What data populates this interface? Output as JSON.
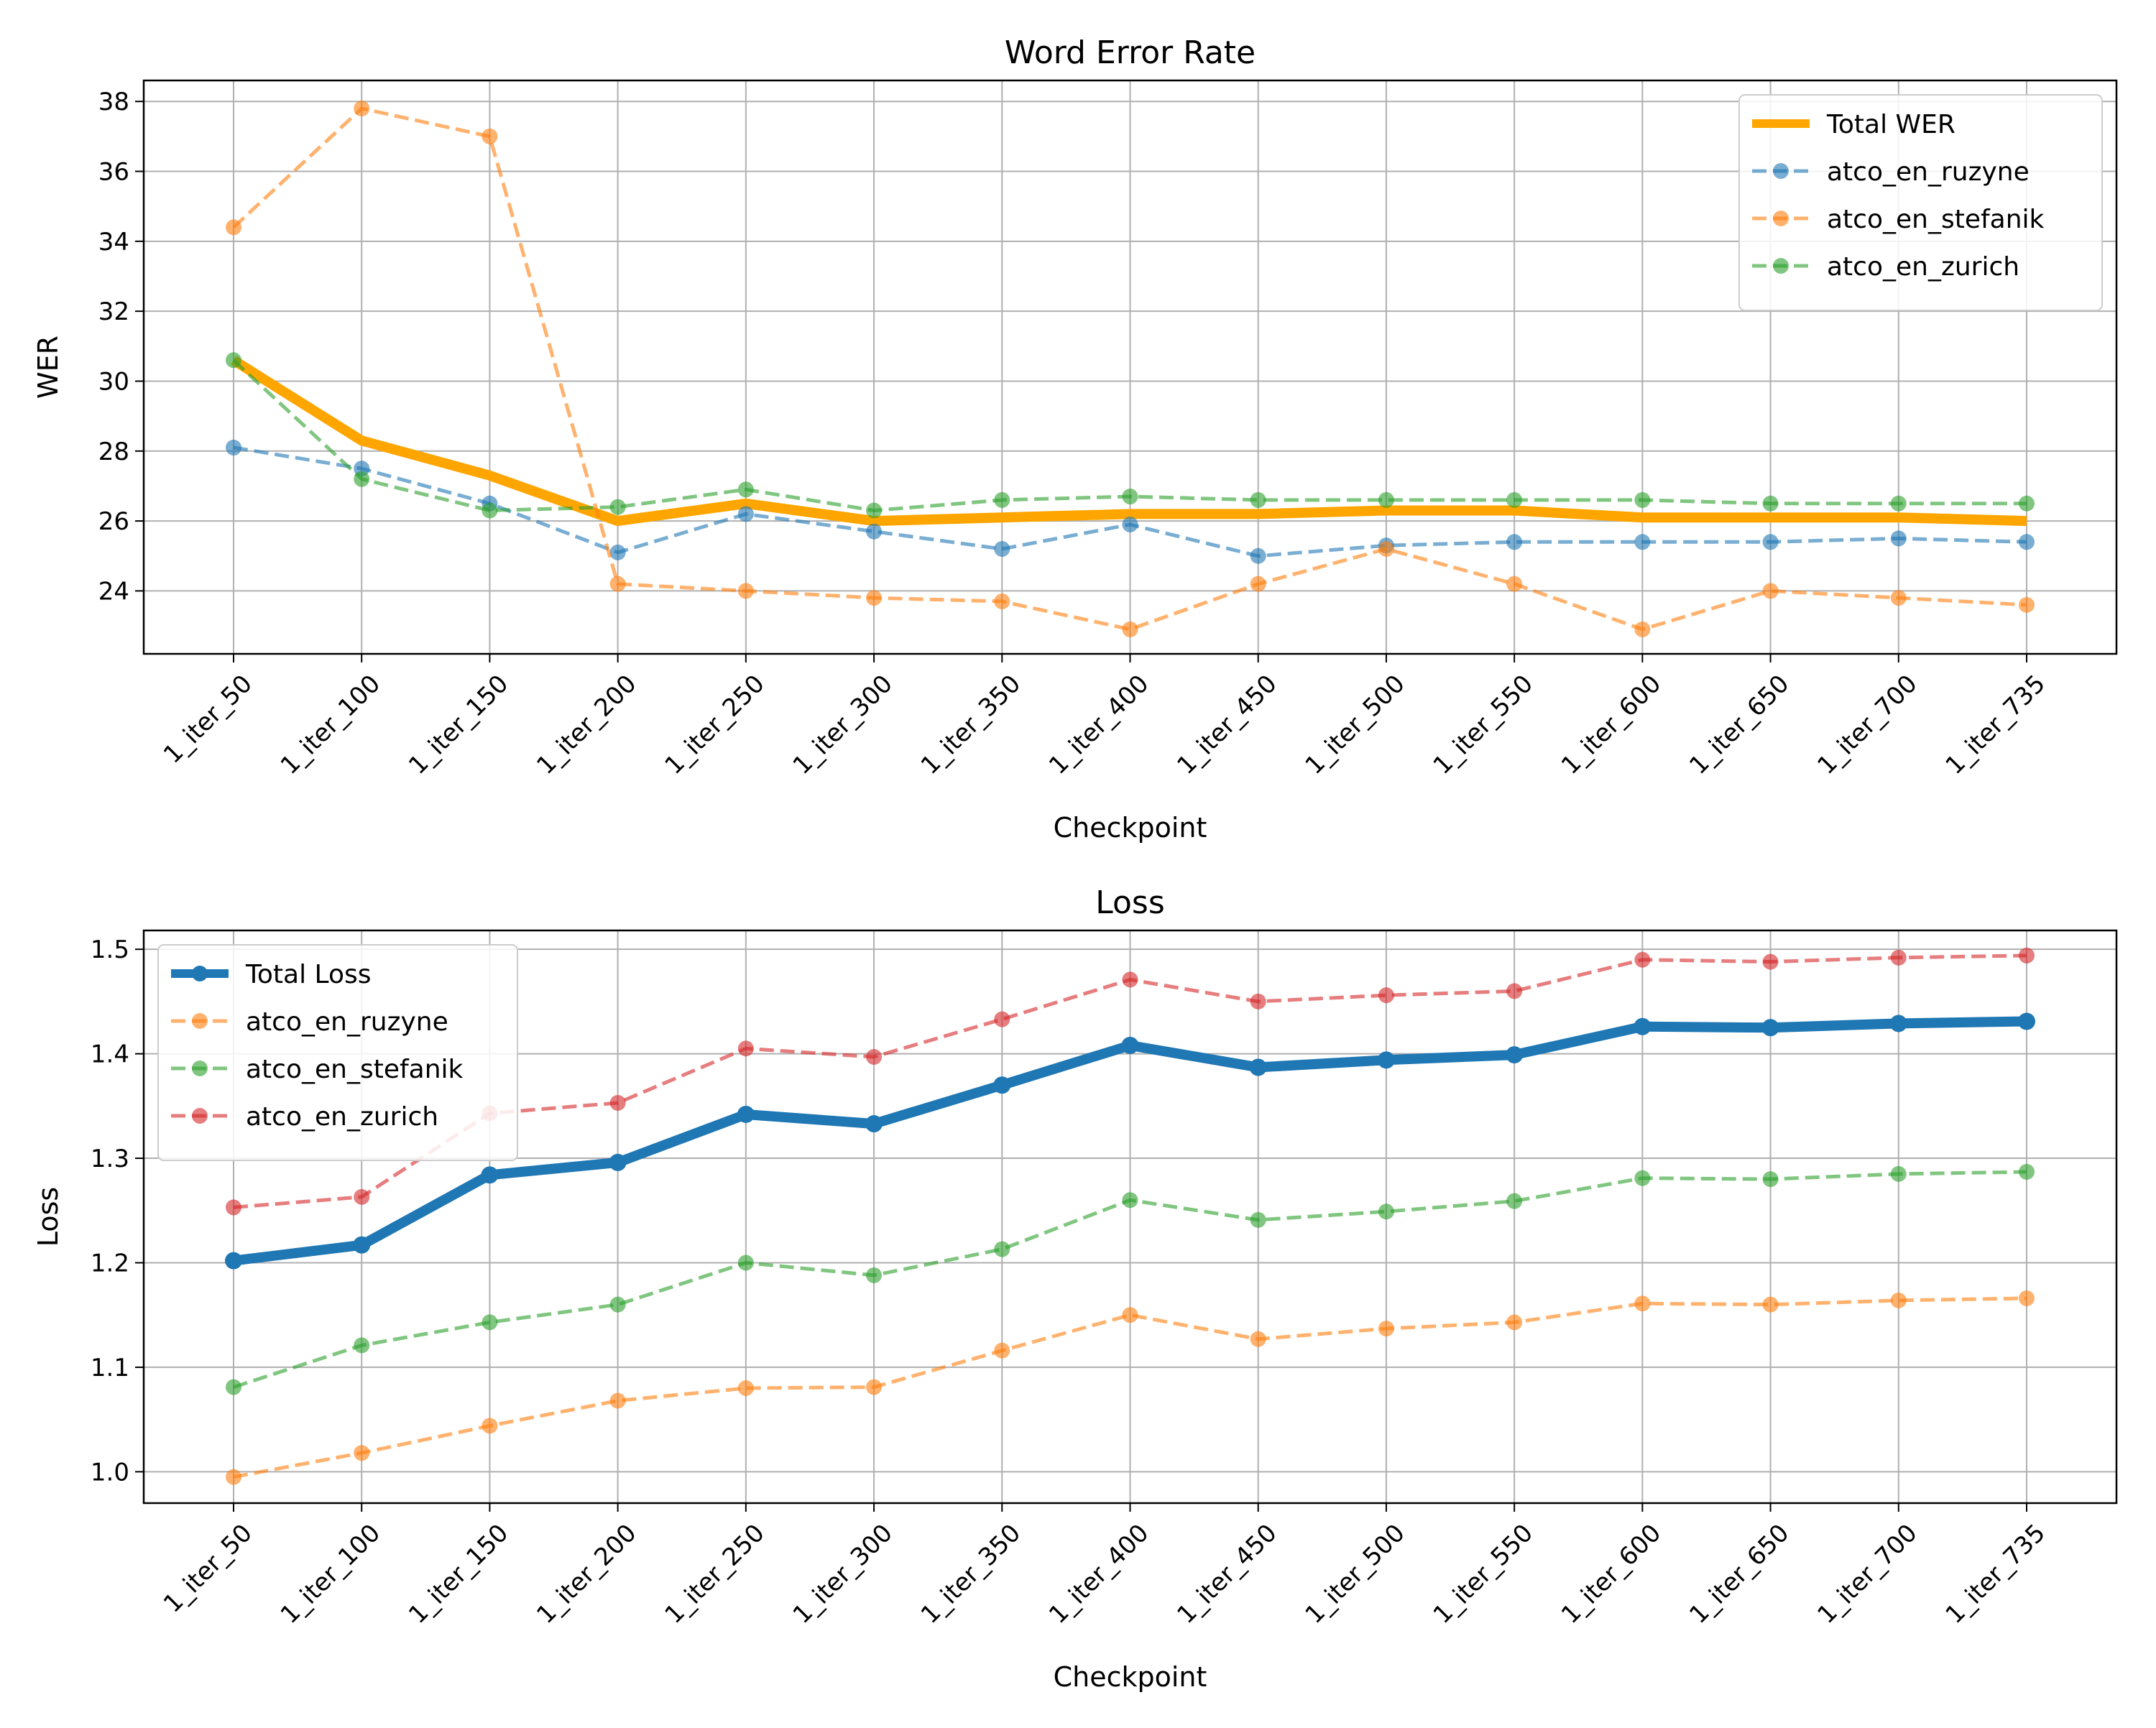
{
  "chart_data": [
    {
      "type": "line",
      "title": "Word Error Rate",
      "xlabel": "Checkpoint",
      "ylabel": "WER",
      "categories": [
        "1_iter_50",
        "1_iter_100",
        "1_iter_150",
        "1_iter_200",
        "1_iter_250",
        "1_iter_300",
        "1_iter_350",
        "1_iter_400",
        "1_iter_450",
        "1_iter_500",
        "1_iter_550",
        "1_iter_600",
        "1_iter_650",
        "1_iter_700",
        "1_iter_735"
      ],
      "ylim": [
        22.2,
        38.6
      ],
      "yticks": [
        "24",
        "26",
        "28",
        "30",
        "32",
        "34",
        "36",
        "38"
      ],
      "grid": true,
      "legend_position": "top-right",
      "series": [
        {
          "name": "Total WER",
          "color": "#ffa500",
          "style": "solid",
          "markers": false,
          "values": [
            30.6,
            28.3,
            27.3,
            26.0,
            26.5,
            26.0,
            26.1,
            26.2,
            26.2,
            26.3,
            26.3,
            26.1,
            26.1,
            26.1,
            26.0
          ]
        },
        {
          "name": "atco_en_ruzyne",
          "color": "#1f77b4",
          "style": "dashed",
          "markers": true,
          "values": [
            28.1,
            27.5,
            26.5,
            25.1,
            26.2,
            25.7,
            25.2,
            25.9,
            25.0,
            25.3,
            25.4,
            25.4,
            25.4,
            25.5,
            25.4
          ]
        },
        {
          "name": "atco_en_stefanik",
          "color": "#ff7f0e",
          "style": "dashed",
          "markers": true,
          "values": [
            34.4,
            37.8,
            37.0,
            24.2,
            24.0,
            23.8,
            23.7,
            22.9,
            24.2,
            25.2,
            24.2,
            22.9,
            24.0,
            23.8,
            23.6
          ]
        },
        {
          "name": "atco_en_zurich",
          "color": "#2ca02c",
          "style": "dashed",
          "markers": true,
          "values": [
            30.6,
            27.2,
            26.3,
            26.4,
            26.9,
            26.3,
            26.6,
            26.7,
            26.6,
            26.6,
            26.6,
            26.6,
            26.5,
            26.5,
            26.5
          ]
        }
      ]
    },
    {
      "type": "line",
      "title": "Loss",
      "xlabel": "Checkpoint",
      "ylabel": "Loss",
      "categories": [
        "1_iter_50",
        "1_iter_100",
        "1_iter_150",
        "1_iter_200",
        "1_iter_250",
        "1_iter_300",
        "1_iter_350",
        "1_iter_400",
        "1_iter_450",
        "1_iter_500",
        "1_iter_550",
        "1_iter_600",
        "1_iter_650",
        "1_iter_700",
        "1_iter_735"
      ],
      "ylim": [
        0.97,
        1.518
      ],
      "yticks": [
        "1.0",
        "1.1",
        "1.2",
        "1.3",
        "1.4",
        "1.5"
      ],
      "grid": true,
      "legend_position": "top-left",
      "series": [
        {
          "name": "Total Loss",
          "color": "#1f77b4",
          "style": "solid",
          "markers": true,
          "values": [
            1.202,
            1.217,
            1.284,
            1.296,
            1.342,
            1.333,
            1.37,
            1.408,
            1.387,
            1.394,
            1.399,
            1.426,
            1.425,
            1.429,
            1.431
          ]
        },
        {
          "name": "atco_en_ruzyne",
          "color": "#ff7f0e",
          "style": "dashed",
          "markers": true,
          "values": [
            0.995,
            1.018,
            1.044,
            1.068,
            1.08,
            1.081,
            1.116,
            1.15,
            1.127,
            1.137,
            1.143,
            1.161,
            1.16,
            1.164,
            1.166
          ]
        },
        {
          "name": "atco_en_stefanik",
          "color": "#2ca02c",
          "style": "dashed",
          "markers": true,
          "values": [
            1.081,
            1.121,
            1.143,
            1.16,
            1.2,
            1.188,
            1.213,
            1.26,
            1.241,
            1.249,
            1.259,
            1.281,
            1.28,
            1.285,
            1.287
          ]
        },
        {
          "name": "atco_en_zurich",
          "color": "#d62728",
          "style": "dashed",
          "markers": true,
          "values": [
            1.253,
            1.263,
            1.343,
            1.353,
            1.405,
            1.397,
            1.433,
            1.471,
            1.45,
            1.456,
            1.46,
            1.49,
            1.488,
            1.492,
            1.494
          ]
        }
      ]
    }
  ]
}
